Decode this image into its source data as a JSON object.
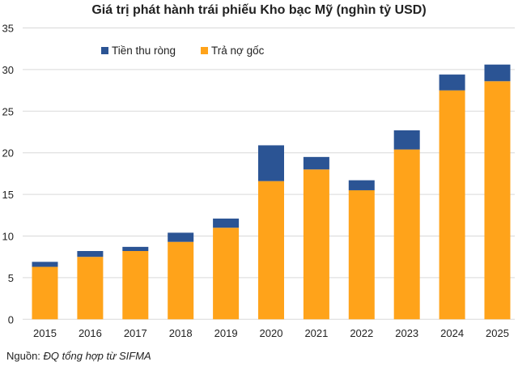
{
  "chart_data": {
    "type": "bar",
    "stacked": true,
    "title": "Giá trị phát hành trái phiếu Kho bạc Mỹ (nghìn tỷ USD)",
    "xlabel": "",
    "ylabel": "",
    "ylim": [
      0,
      35
    ],
    "yticks": [
      0,
      5,
      10,
      15,
      20,
      25,
      30,
      35
    ],
    "grid": true,
    "legend_position": "top-left",
    "categories": [
      "2015",
      "2016",
      "2017",
      "2018",
      "2019",
      "2020",
      "2021",
      "2022",
      "2023",
      "2024",
      "2025"
    ],
    "series": [
      {
        "name": "Trả nợ gốc",
        "color": "#FFA31A",
        "values": [
          6.3,
          7.5,
          8.2,
          9.3,
          11.0,
          16.6,
          18.0,
          15.5,
          20.4,
          27.5,
          28.6
        ]
      },
      {
        "name": "Tiền thu ròng",
        "color": "#2B5494",
        "values": [
          0.6,
          0.7,
          0.5,
          1.1,
          1.1,
          4.3,
          1.5,
          1.2,
          2.3,
          1.9,
          2.0
        ]
      }
    ]
  },
  "source": {
    "label": "Nguồn:",
    "text": "ĐQ tổng hợp từ SIFMA"
  }
}
